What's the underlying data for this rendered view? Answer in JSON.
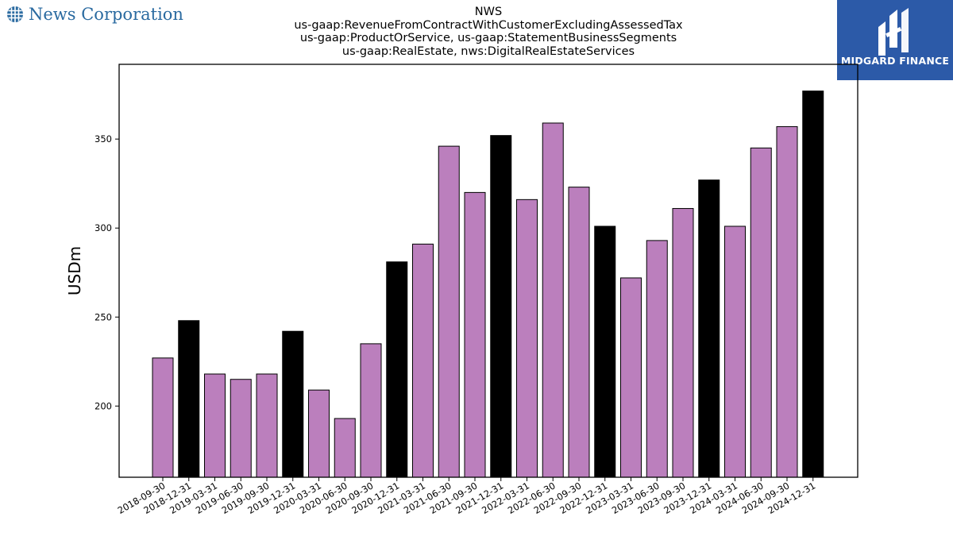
{
  "brand": {
    "name": "News Corporation",
    "icon": "globe-icon"
  },
  "logo": {
    "text": "MIDGARD FINANCE",
    "background": "#2c5aa8"
  },
  "chart_data": {
    "type": "bar",
    "title_lines": [
      "NWS",
      "us-gaap:RevenueFromContractWithCustomerExcludingAssessedTax",
      "us-gaap:ProductOrService, us-gaap:StatementBusinessSegments",
      "us-gaap:RealEstate, nws:DigitalRealEstateServices"
    ],
    "ylabel": "USDm",
    "xlabel": "",
    "ylim": [
      160,
      392
    ],
    "yticks": [
      200,
      250,
      300,
      350
    ],
    "grid": false,
    "colors": {
      "quarter": "#bb7fbd",
      "year_end": "#000000"
    },
    "categories": [
      "2018-09-30",
      "2018-12-31",
      "2019-03-31",
      "2019-06-30",
      "2019-09-30",
      "2019-12-31",
      "2020-03-31",
      "2020-06-30",
      "2020-09-30",
      "2020-12-31",
      "2021-03-31",
      "2021-06-30",
      "2021-09-30",
      "2021-12-31",
      "2022-03-31",
      "2022-06-30",
      "2022-09-30",
      "2022-12-31",
      "2023-03-31",
      "2023-06-30",
      "2023-09-30",
      "2023-12-31",
      "2024-03-31",
      "2024-06-30",
      "2024-09-30",
      "2024-12-31"
    ],
    "values": [
      227,
      248,
      218,
      215,
      218,
      242,
      209,
      193,
      235,
      281,
      291,
      346,
      320,
      352,
      316,
      359,
      323,
      301,
      272,
      293,
      311,
      327,
      301,
      345,
      357,
      377
    ],
    "year_end": [
      false,
      true,
      false,
      false,
      false,
      true,
      false,
      false,
      false,
      true,
      false,
      false,
      false,
      true,
      false,
      false,
      false,
      true,
      false,
      false,
      false,
      true,
      false,
      false,
      false,
      true
    ]
  }
}
